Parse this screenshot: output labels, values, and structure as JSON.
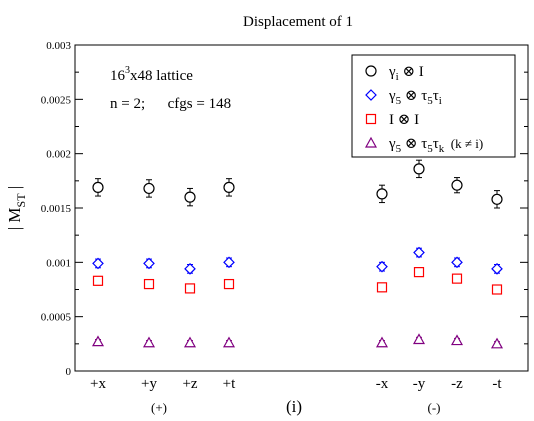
{
  "chart_data": {
    "type": "scatter",
    "title": "Displacement of 1",
    "ylabel_main": "| M",
    "ylabel_sub": "ST",
    "ylabel_end": " |",
    "ylim": [
      0,
      0.003
    ],
    "yticks": [
      "0",
      "0.0005",
      "0.001",
      "0.0015",
      "0.002",
      "0.0025",
      "0.003"
    ],
    "ytick_values": [
      0,
      0.0005,
      0.001,
      0.0015,
      0.002,
      0.0025,
      0.003
    ],
    "categories": [
      "+x",
      "+y",
      "+z",
      "+t",
      "-x",
      "-y",
      "-z",
      "-t"
    ],
    "group_labels": [
      "(+)",
      "(-)"
    ],
    "panel_label": "(i)",
    "annotations": {
      "lattice_base": "16",
      "lattice_exp": "3",
      "lattice_rest": "x48 lattice",
      "params": "n = 2;      cfgs = 148"
    },
    "legend": {
      "position": "top-right",
      "entries": [
        {
          "main": "γ",
          "sub": "i",
          "rest": " ⊗ I",
          "marker": "circle",
          "color": "#000000"
        },
        {
          "main": "γ",
          "sub": "5",
          "rest": " ⊗ τ",
          "sub2": "5",
          "rest2": "τ",
          "sub3": "i",
          "marker": "diamond",
          "color": "#0000ff"
        },
        {
          "main": "I ⊗ I",
          "marker": "square",
          "color": "#ff0000"
        },
        {
          "main": "γ",
          "sub": "5",
          "rest": " ⊗ τ",
          "sub2": "5",
          "rest2": "τ",
          "sub3": "k",
          "tail": "  (k ≠ i)",
          "marker": "triangle",
          "color": "#800080"
        }
      ]
    },
    "series": [
      {
        "name": "γi ⊗ I",
        "marker": "circle",
        "color": "#000000",
        "values": [
          0.00169,
          0.00168,
          0.0016,
          0.00169,
          0.00163,
          0.00186,
          0.00171,
          0.00158
        ],
        "errors": [
          8e-05,
          8e-05,
          8e-05,
          8e-05,
          8e-05,
          8e-05,
          7e-05,
          8e-05
        ]
      },
      {
        "name": "γ5 ⊗ τ5τi",
        "marker": "diamond",
        "color": "#0000ff",
        "values": [
          0.00099,
          0.00099,
          0.00094,
          0.001,
          0.00096,
          0.00109,
          0.001,
          0.00094
        ],
        "errors": [
          4e-05,
          4e-05,
          4e-05,
          4e-05,
          4e-05,
          4e-05,
          4e-05,
          4e-05
        ]
      },
      {
        "name": "I ⊗ I",
        "marker": "square",
        "color": "#ff0000",
        "values": [
          0.00083,
          0.0008,
          0.00076,
          0.0008,
          0.00077,
          0.00091,
          0.00085,
          0.00075
        ],
        "errors": [
          4e-05,
          4e-05,
          4e-05,
          4e-05,
          4e-05,
          4e-05,
          4e-05,
          4e-05
        ]
      },
      {
        "name": "γ5 ⊗ τ5τk (k ≠ i)",
        "marker": "triangle",
        "color": "#800080",
        "values": [
          0.00027,
          0.00026,
          0.00026,
          0.00026,
          0.00026,
          0.00029,
          0.00028,
          0.00025
        ],
        "errors": [
          2e-05,
          2e-05,
          2e-05,
          2e-05,
          2e-05,
          2e-05,
          2e-05,
          2e-05
        ]
      }
    ]
  }
}
